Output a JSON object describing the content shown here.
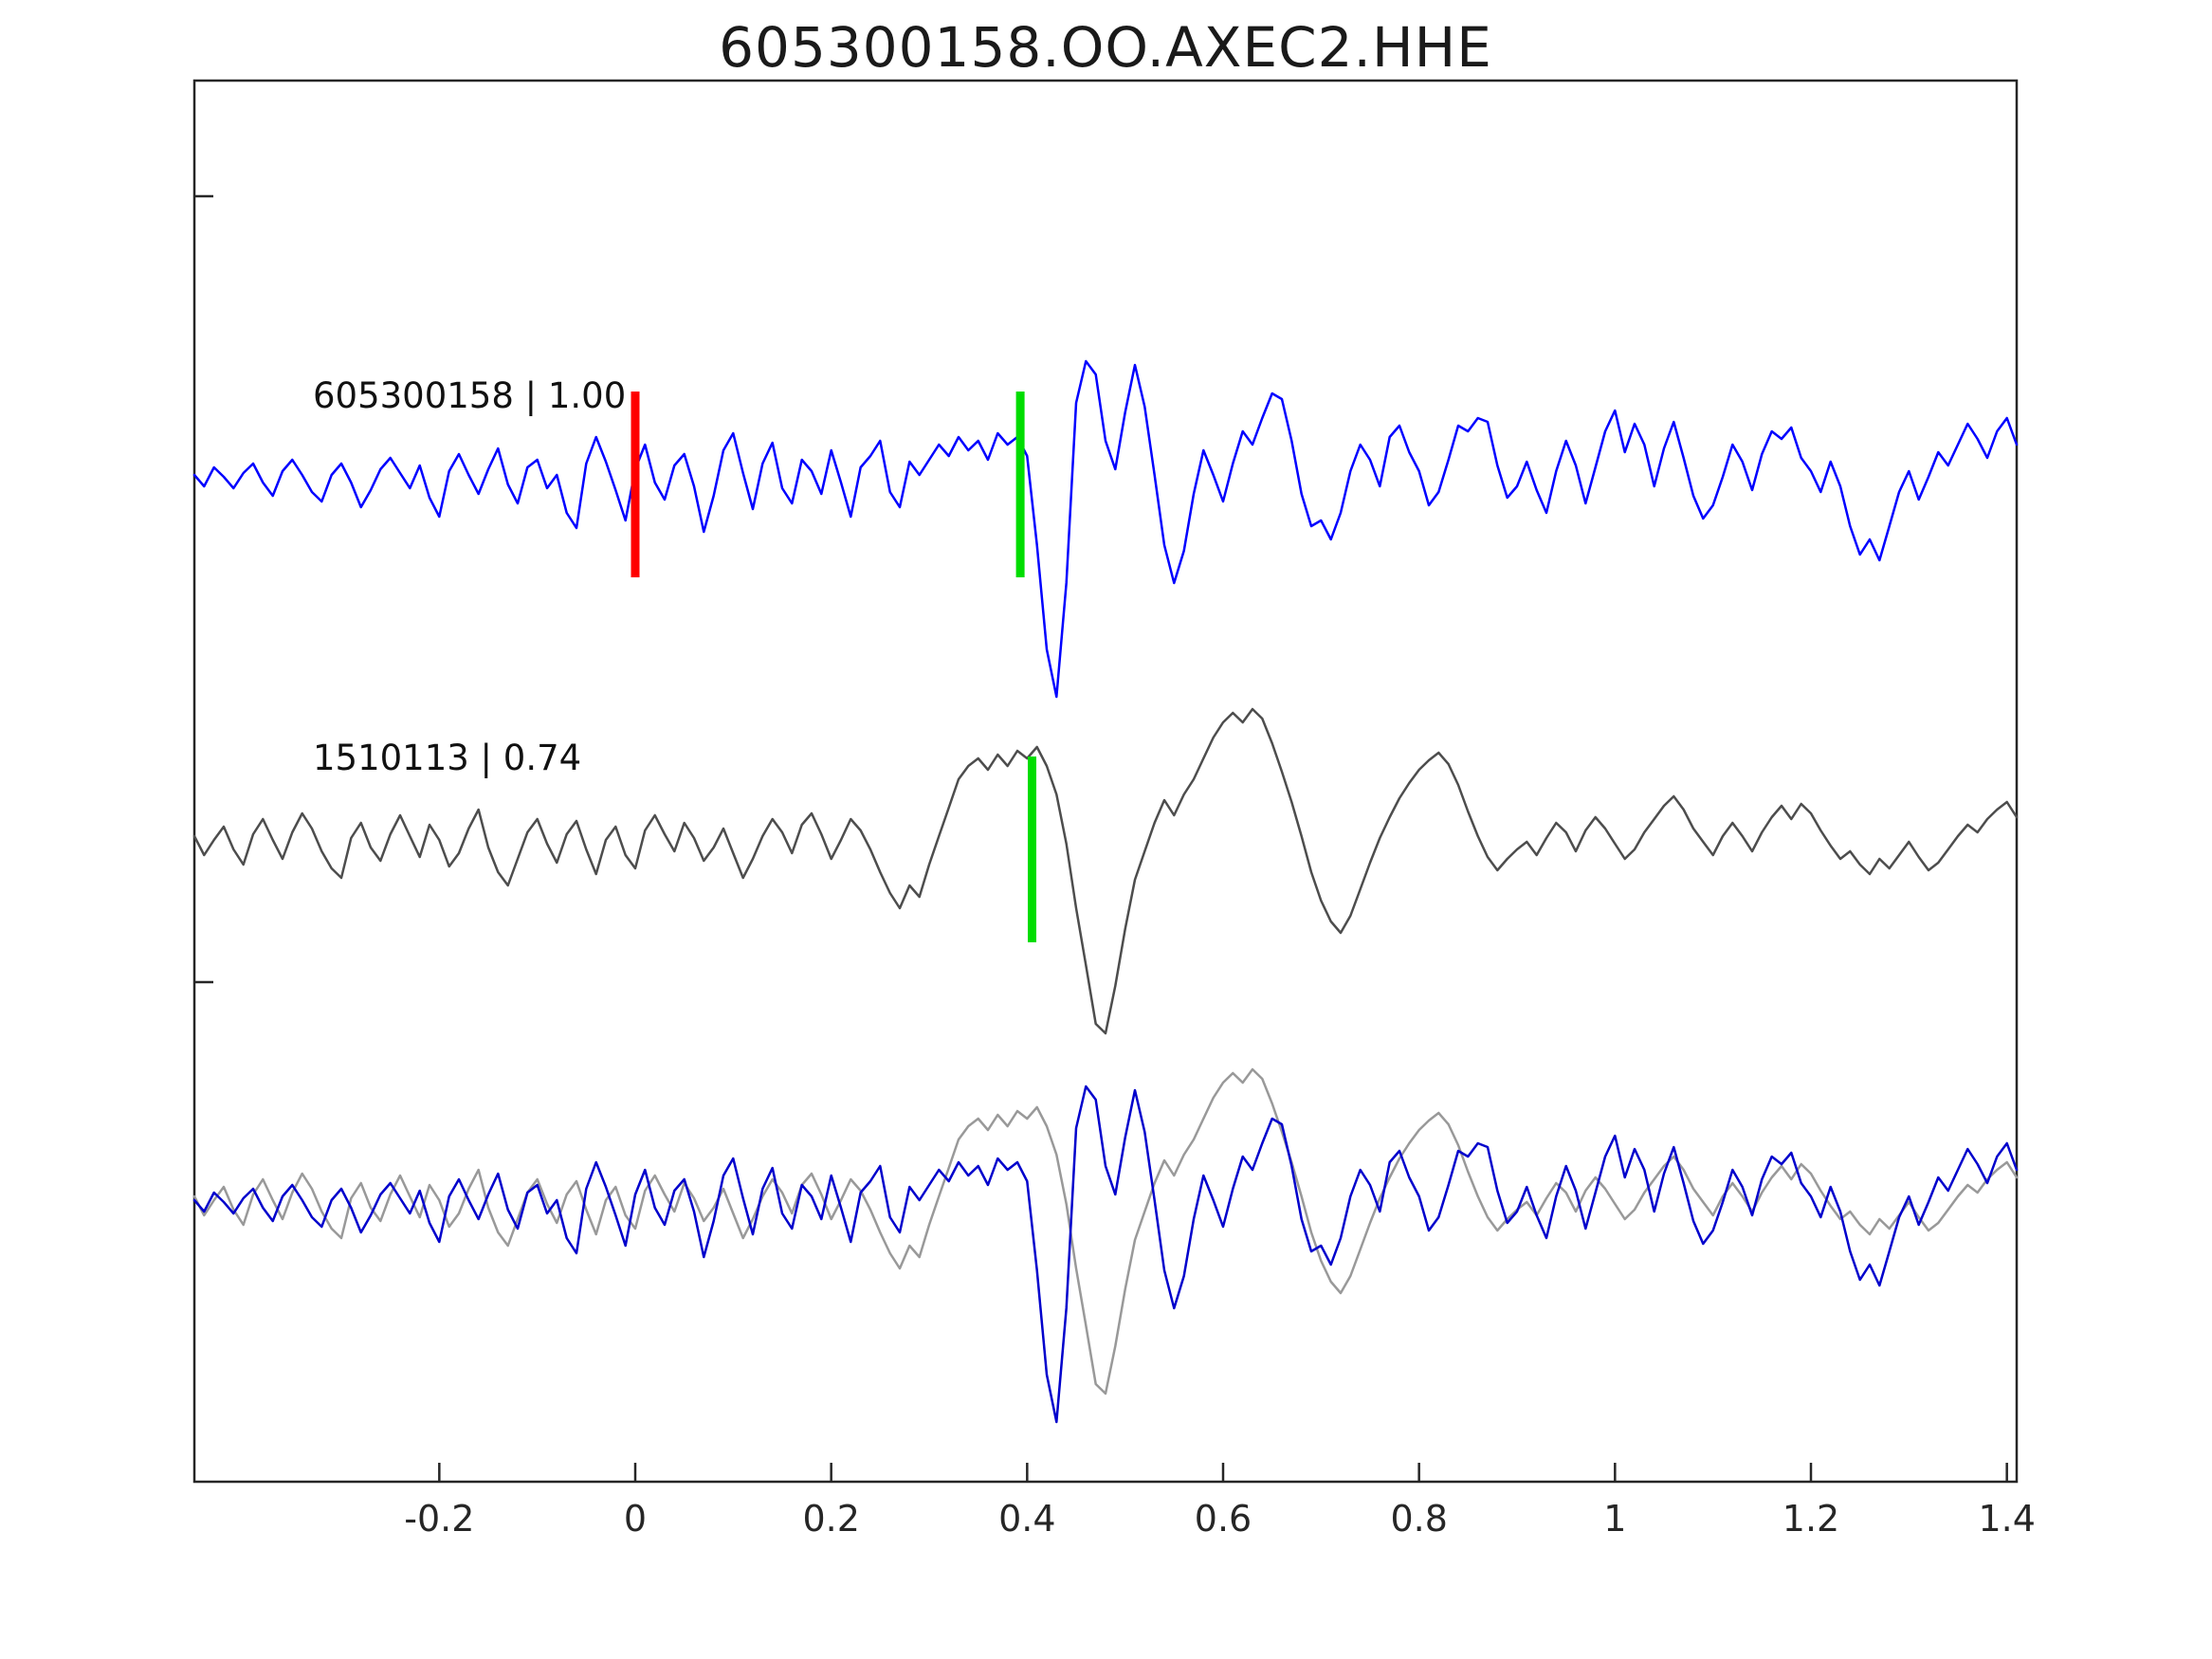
{
  "title": "605300158.OO.AXEC2.HHE",
  "chart_data": {
    "type": "line",
    "title": "605300158.OO.AXEC2.HHE",
    "xlabel": "",
    "ylabel": "",
    "xlim": [
      -0.45,
      1.41
    ],
    "x_ticks": [
      -0.2,
      0,
      0.2,
      0.4,
      0.6,
      0.8,
      1,
      1.2,
      1.4
    ],
    "x_tick_labels": [
      "-0.2",
      "0",
      "0.2",
      "0.4",
      "0.6",
      "0.8",
      "1",
      "1.2",
      "1.4"
    ],
    "x_start": -0.45,
    "dx": 0.01,
    "grid": false,
    "legend": "inline-labels",
    "axis_color": "#262626",
    "series": [
      {
        "name": "template-605300158",
        "label": "605300158 | 1.00",
        "id": "605300158",
        "correlation": "1.00",
        "color": "#0000ff",
        "row": 0,
        "values": [
          0.02,
          -0.04,
          0.06,
          0.01,
          -0.05,
          0.03,
          0.08,
          -0.02,
          -0.09,
          0.04,
          0.1,
          0.02,
          -0.07,
          -0.12,
          0.02,
          0.08,
          -0.02,
          -0.15,
          -0.06,
          0.05,
          0.11,
          0.03,
          -0.05,
          0.07,
          -0.1,
          -0.2,
          0.04,
          0.13,
          0.02,
          -0.08,
          0.05,
          0.16,
          -0.03,
          -0.13,
          0.06,
          0.1,
          -0.05,
          0.02,
          -0.18,
          -0.26,
          0.08,
          0.22,
          0.09,
          -0.06,
          -0.22,
          0.05,
          0.18,
          -0.02,
          -0.11,
          0.07,
          0.13,
          -0.04,
          -0.28,
          -0.09,
          0.15,
          0.24,
          0.03,
          -0.16,
          0.08,
          0.19,
          -0.05,
          -0.13,
          0.1,
          0.04,
          -0.08,
          0.15,
          -0.02,
          -0.2,
          0.06,
          0.12,
          0.2,
          -0.07,
          -0.15,
          0.09,
          0.02,
          0.1,
          0.18,
          0.12,
          0.22,
          0.15,
          0.2,
          0.1,
          0.24,
          0.18,
          0.22,
          0.12,
          -0.35,
          -0.9,
          -1.15,
          -0.55,
          0.4,
          0.62,
          0.55,
          0.2,
          0.05,
          0.35,
          0.6,
          0.38,
          0.02,
          -0.35,
          -0.55,
          -0.38,
          -0.08,
          0.15,
          0.02,
          -0.12,
          0.08,
          0.25,
          0.18,
          0.32,
          0.45,
          0.42,
          0.2,
          -0.08,
          -0.25,
          -0.22,
          -0.32,
          -0.18,
          0.04,
          0.18,
          0.1,
          -0.04,
          0.22,
          0.28,
          0.14,
          0.04,
          -0.14,
          -0.07,
          0.1,
          0.28,
          0.25,
          0.32,
          0.3,
          0.07,
          -0.1,
          -0.04,
          0.09,
          -0.06,
          -0.18,
          0.04,
          0.2,
          0.07,
          -0.13,
          0.06,
          0.25,
          0.36,
          0.14,
          0.29,
          0.18,
          -0.04,
          0.16,
          0.3,
          0.11,
          -0.09,
          -0.21,
          -0.14,
          0.01,
          0.18,
          0.09,
          -0.06,
          0.13,
          0.25,
          0.21,
          0.27,
          0.11,
          0.04,
          -0.07,
          0.09,
          -0.04,
          -0.25,
          -0.4,
          -0.32,
          -0.43,
          -0.25,
          -0.07,
          0.04,
          -0.11,
          0.01,
          0.14,
          0.07,
          0.18,
          0.29,
          0.21,
          0.11,
          0.25,
          0.32,
          0.18
        ]
      },
      {
        "name": "detection-1510113",
        "label": "1510113 | 0.74",
        "id": "1510113",
        "correlation": "0.74",
        "color": "#4d4d4d",
        "row": 1,
        "values": [
          0.04,
          -0.06,
          0.02,
          0.09,
          -0.03,
          -0.11,
          0.05,
          0.13,
          0.02,
          -0.08,
          0.06,
          0.16,
          0.08,
          -0.04,
          -0.13,
          -0.18,
          0.03,
          0.11,
          -0.02,
          -0.09,
          0.05,
          0.15,
          0.04,
          -0.07,
          0.1,
          0.02,
          -0.12,
          -0.05,
          0.08,
          0.18,
          -0.02,
          -0.15,
          -0.22,
          -0.08,
          0.06,
          0.13,
          0.0,
          -0.1,
          0.05,
          0.12,
          -0.03,
          -0.16,
          0.02,
          0.09,
          -0.06,
          -0.13,
          0.07,
          0.15,
          0.05,
          -0.04,
          0.11,
          0.03,
          -0.09,
          -0.02,
          0.08,
          -0.05,
          -0.18,
          -0.08,
          0.04,
          0.13,
          0.06,
          -0.05,
          0.1,
          0.16,
          0.05,
          -0.08,
          0.02,
          0.13,
          0.07,
          -0.03,
          -0.15,
          -0.26,
          -0.34,
          -0.22,
          -0.28,
          -0.11,
          0.04,
          0.19,
          0.34,
          0.41,
          0.45,
          0.39,
          0.47,
          0.41,
          0.49,
          0.45,
          0.51,
          0.41,
          0.26,
          0.0,
          -0.34,
          -0.64,
          -0.95,
          -1.0,
          -0.75,
          -0.45,
          -0.19,
          -0.04,
          0.11,
          0.23,
          0.15,
          0.26,
          0.34,
          0.45,
          0.56,
          0.64,
          0.69,
          0.64,
          0.71,
          0.66,
          0.53,
          0.38,
          0.22,
          0.04,
          -0.15,
          -0.3,
          -0.41,
          -0.47,
          -0.38,
          -0.24,
          -0.1,
          0.03,
          0.14,
          0.24,
          0.32,
          0.39,
          0.44,
          0.48,
          0.42,
          0.31,
          0.17,
          0.04,
          -0.07,
          -0.14,
          -0.08,
          -0.03,
          0.01,
          -0.06,
          0.03,
          0.11,
          0.06,
          -0.04,
          0.07,
          0.14,
          0.08,
          0.0,
          -0.08,
          -0.03,
          0.06,
          0.13,
          0.2,
          0.25,
          0.18,
          0.08,
          0.01,
          -0.06,
          0.04,
          0.11,
          0.04,
          -0.04,
          0.06,
          0.14,
          0.2,
          0.13,
          0.21,
          0.16,
          0.07,
          -0.01,
          -0.08,
          -0.04,
          -0.11,
          -0.16,
          -0.08,
          -0.13,
          -0.06,
          0.01,
          -0.07,
          -0.14,
          -0.1,
          -0.03,
          0.04,
          0.1,
          0.06,
          0.13,
          0.18,
          0.22,
          0.14
        ]
      }
    ],
    "overlay_row": {
      "row": 2,
      "draw": [
        {
          "series": 1,
          "color": "#999999"
        },
        {
          "series": 0,
          "color": "#0000cc"
        }
      ]
    },
    "markers": [
      {
        "name": "template-pick-marker",
        "x": 0.0,
        "row": 0,
        "color": "#ff0000"
      },
      {
        "name": "detection-pick-marker-top",
        "x": 0.393,
        "row": 0,
        "color": "#00dd00"
      },
      {
        "name": "detection-pick-marker-middle",
        "x": 0.405,
        "row": 1,
        "color": "#00dd00"
      }
    ]
  }
}
